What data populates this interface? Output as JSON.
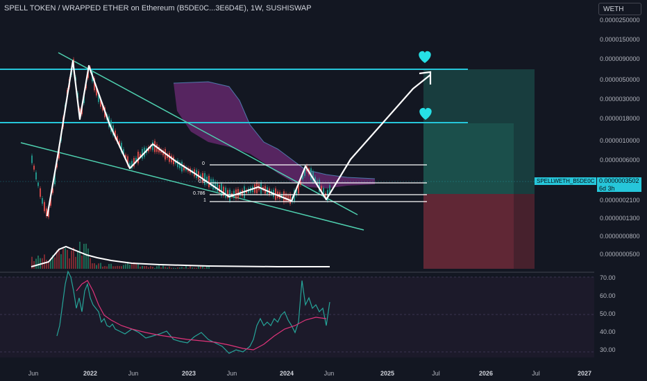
{
  "header": {
    "title": "SPELL TOKEN / WRAPPED ETHER on Ethereum (B5DE0C...3E6D4E), 1W, SUSHISWAP",
    "currency": "WETH"
  },
  "price_axis": {
    "labels": [
      "0.0000250000",
      "0.0000150000",
      "0.0000090000",
      "0.0000050000",
      "0.0000030000",
      "0.0000018000",
      "0.0000010000",
      "0.0000006000",
      "0.0000003502",
      "0.0000002100",
      "0.0000001300",
      "0.0000000800",
      "0.0000000500"
    ],
    "current_symbol": "SPELLWETH_B5DE0C",
    "current_price": "0.0000003502",
    "countdown": "6d 3h"
  },
  "rsi_axis": {
    "labels": [
      "70.00",
      "60.00",
      "50.00",
      "40.00",
      "30.00"
    ]
  },
  "time_axis": {
    "labels": [
      {
        "text": "Jun",
        "bold": false
      },
      {
        "text": "2022",
        "bold": true
      },
      {
        "text": "Jun",
        "bold": false
      },
      {
        "text": "2023",
        "bold": true
      },
      {
        "text": "Jun",
        "bold": false
      },
      {
        "text": "2024",
        "bold": true
      },
      {
        "text": "Jun",
        "bold": false
      },
      {
        "text": "2025",
        "bold": true
      },
      {
        "text": "Jul",
        "bold": false
      },
      {
        "text": "2026",
        "bold": true
      },
      {
        "text": "Jul",
        "bold": false
      },
      {
        "text": "2027",
        "bold": true
      }
    ]
  },
  "fib_levels": [
    "0",
    "0.5",
    "0.786",
    "1"
  ],
  "colors": {
    "background": "#131722",
    "cyan": "#26c6da",
    "teal_zone": "#1e5c55",
    "red_zone": "#6a2836",
    "cloud": "#7b2d83",
    "rsi": "#26a69a",
    "rsi_ma": "#e0347a",
    "white": "#ffffff"
  },
  "icons": {
    "target_markers": [
      "heart-icon",
      "heart-icon"
    ]
  }
}
